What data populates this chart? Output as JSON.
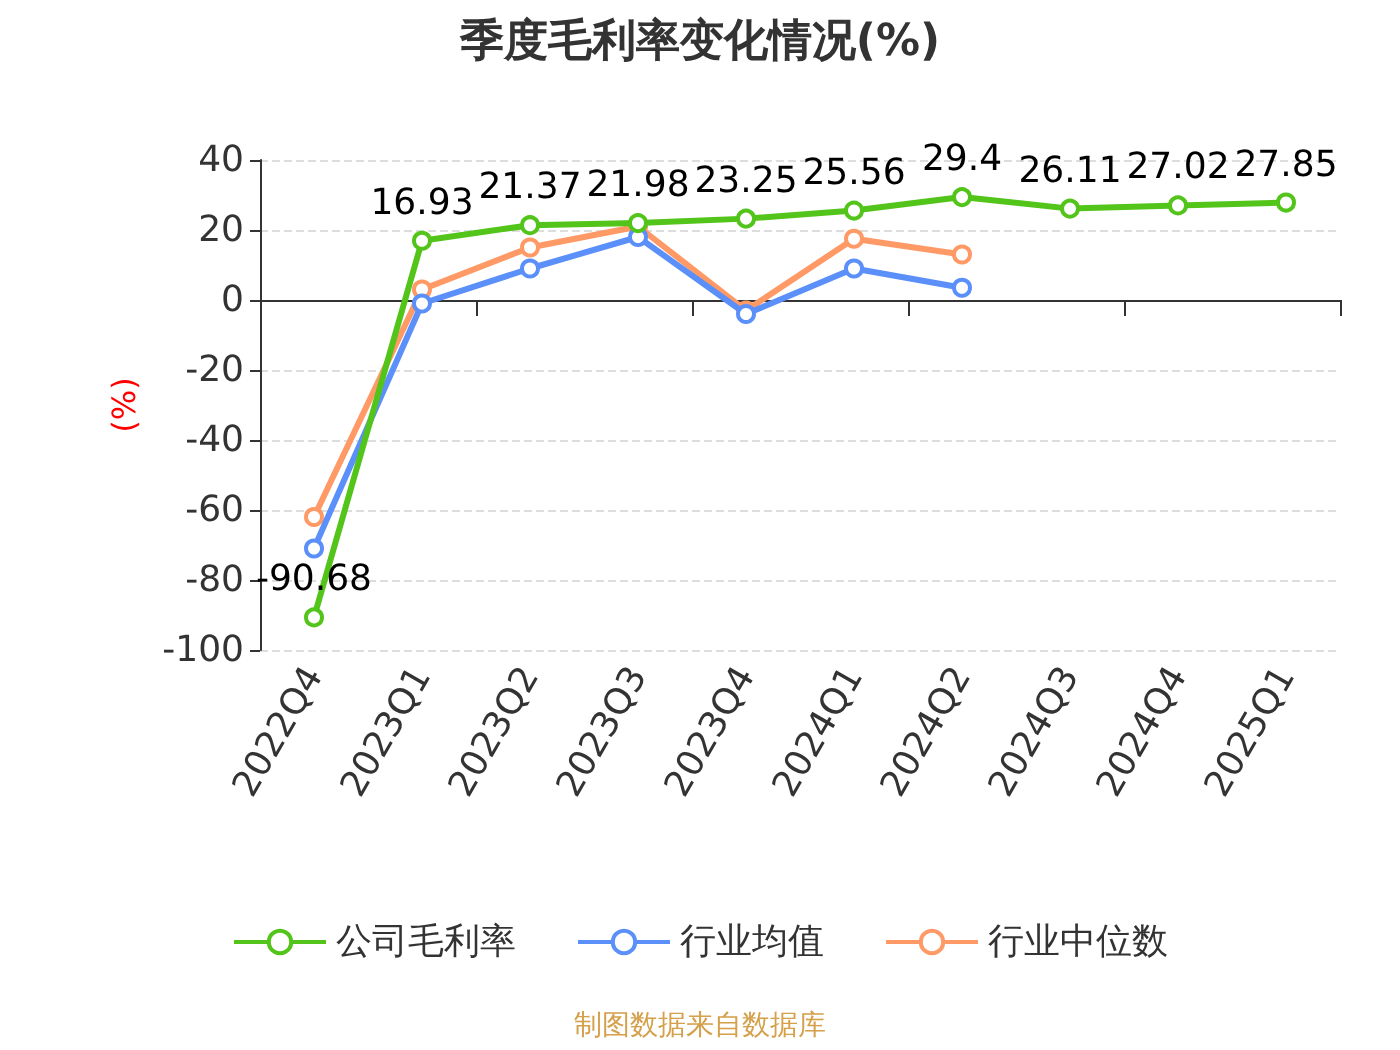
{
  "chart_data": {
    "type": "line",
    "title": "季度毛利率变化情况(%)",
    "ylabel": "(%)",
    "categories": [
      "2022Q4",
      "2023Q1",
      "2023Q2",
      "2023Q3",
      "2023Q4",
      "2024Q1",
      "2024Q2",
      "2024Q3",
      "2024Q4",
      "2025Q1"
    ],
    "series": [
      {
        "name": "公司毛利率",
        "color": "#52c41a",
        "values": [
          -90.68,
          16.93,
          21.37,
          21.98,
          23.25,
          25.56,
          29.4,
          26.11,
          27.02,
          27.85
        ],
        "value_labels": [
          "-90.68",
          "16.93",
          "21.37",
          "21.98",
          "23.25",
          "25.56",
          "29.4",
          "26.11",
          "27.02",
          "27.85"
        ]
      },
      {
        "name": "行业均值",
        "color": "#5b8ff9",
        "values": [
          -71,
          -1,
          9,
          18,
          -4,
          9,
          3.5,
          null,
          null,
          null
        ]
      },
      {
        "name": "行业中位数",
        "color": "#ff9966",
        "values": [
          -62,
          3,
          15,
          21,
          -3,
          17.5,
          13,
          null,
          null,
          null
        ]
      }
    ],
    "ylim": [
      -100,
      40
    ],
    "yticks": [
      -100,
      -80,
      -60,
      -40,
      -20,
      0,
      20,
      40
    ],
    "grid": "y",
    "legend": "bottom",
    "marker": "circle",
    "line_style": "solid",
    "annotations": [
      "制图数据来自数据库"
    ]
  }
}
